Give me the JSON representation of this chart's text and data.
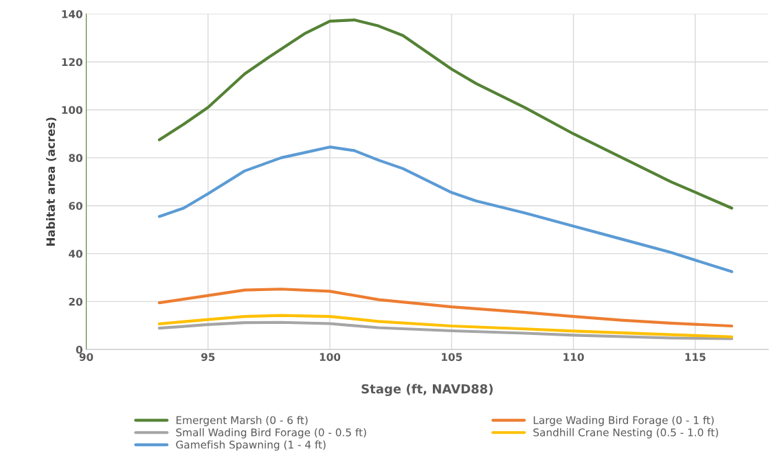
{
  "chart_data": {
    "type": "line",
    "xlabel": "Stage (ft, NAVD88)",
    "ylabel": "Habitat area (acres)",
    "xlim": [
      90,
      118
    ],
    "xticks": [
      90,
      95,
      100,
      105,
      110,
      115
    ],
    "ylim": [
      0,
      140
    ],
    "yticks": [
      0,
      20,
      40,
      60,
      80,
      100,
      120,
      140
    ],
    "grid": true,
    "legend": "bottom",
    "marker": "none",
    "line_style": "solid",
    "series": [
      {
        "name": "Emergent Marsh (0 - 6 ft)",
        "color": "#548235",
        "x": [
          93,
          94,
          95,
          96.5,
          97.5,
          99,
          100,
          101,
          102,
          103,
          104,
          105,
          106,
          108,
          110,
          112,
          114,
          116.5
        ],
        "values": [
          87.5,
          94,
          101,
          115,
          122,
          132,
          137,
          137.5,
          135,
          131,
          124,
          117,
          111,
          101,
          90,
          80,
          70,
          59
        ]
      },
      {
        "name": "Large Wading Bird Forage (0 - 1 ft)",
        "color": "#ed7d31",
        "x": [
          93,
          95,
          96.5,
          98,
          100,
          102,
          105,
          108,
          110,
          112,
          114,
          116.5
        ],
        "values": [
          19.5,
          22.5,
          24.8,
          25.2,
          24.3,
          20.8,
          17.8,
          15.5,
          13.8,
          12.2,
          11,
          9.8
        ]
      },
      {
        "name": "Small Wading Bird Forage (0 - 0.5 ft)",
        "color": "#a5a5a5",
        "x": [
          93,
          95,
          96.5,
          98,
          100,
          102,
          105,
          108,
          110,
          114,
          116.5
        ],
        "values": [
          8.9,
          10.4,
          11.2,
          11.3,
          10.8,
          9.1,
          7.8,
          6.8,
          6.0,
          4.8,
          4.5
        ]
      },
      {
        "name": "Sandhill Crane Nesting (0.5 - 1.0 ft)",
        "color": "#ffc000",
        "x": [
          93,
          95,
          96.5,
          98,
          100,
          102,
          105,
          108,
          110,
          114,
          116.5
        ],
        "values": [
          10.7,
          12.5,
          13.8,
          14.2,
          13.8,
          11.7,
          9.8,
          8.6,
          7.7,
          6.2,
          5.3
        ]
      },
      {
        "name": "Gamefish Spawning (1 - 4 ft)",
        "color": "#5b9bd5",
        "x": [
          93,
          94,
          95,
          96.5,
          98,
          100,
          101,
          102,
          103,
          104,
          105,
          106,
          108,
          110,
          112,
          114,
          116.5
        ],
        "values": [
          55.5,
          59,
          65,
          74.5,
          80,
          84.5,
          83,
          79,
          75.5,
          70.5,
          65.5,
          62,
          57,
          51.5,
          46,
          40.5,
          32.5
        ]
      }
    ]
  }
}
